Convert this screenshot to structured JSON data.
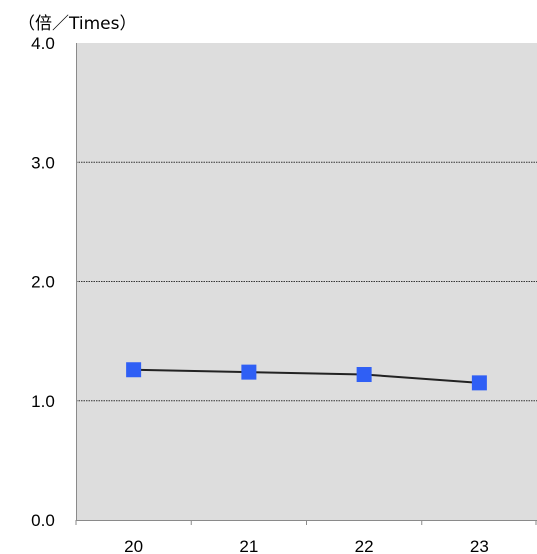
{
  "chart_data": {
    "type": "line",
    "unit_label": "（倍／Times）",
    "categories": [
      "20",
      "21",
      "22",
      "23"
    ],
    "series": [
      {
        "values": [
          1.26,
          1.24,
          1.22,
          1.15
        ]
      }
    ],
    "ylim": [
      0,
      4
    ],
    "yticks": [
      "0.0",
      "1.0",
      "2.0",
      "3.0",
      "4.0"
    ],
    "grid": true,
    "colors": {
      "plot_background": "#dddddd",
      "line": "#222222",
      "marker": "#2f5ff5",
      "gridline": "#333333"
    }
  }
}
